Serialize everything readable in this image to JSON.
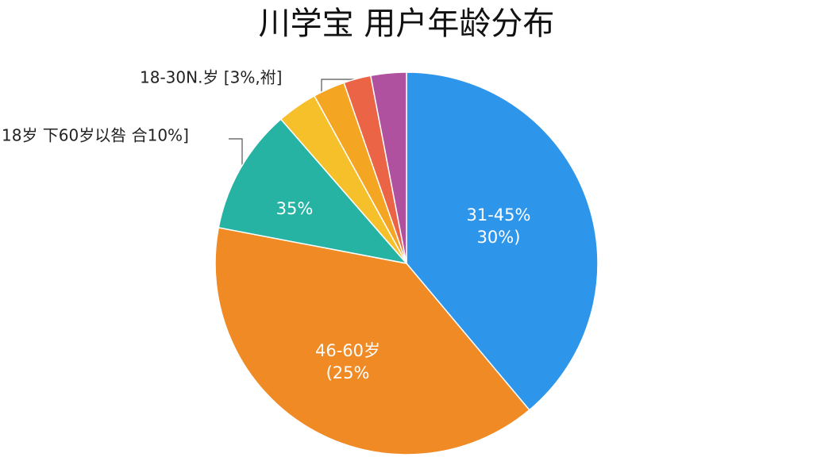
{
  "chart_data": {
    "type": "pie",
    "title": "川学宝  用户年龄分布",
    "values": [
      38.9,
      39.1,
      10.6,
      3.4,
      2.7,
      2.3,
      3.0
    ],
    "colors": [
      "#2e96ea",
      "#f08a24",
      "#26b3a3",
      "#f5c02a",
      "#f4a623",
      "#ec6446",
      "#b0519f"
    ],
    "annotations": [
      {
        "lines": [
          "31-45%",
          "30%)"
        ]
      },
      {
        "lines": [
          "46-60岁",
          "(25%"
        ]
      },
      {
        "lines": [
          "35%"
        ]
      },
      {
        "lines": [
          "18-30N.岁  [3%,祔]"
        ]
      },
      {
        "lines": [
          "18岁  下60岁以咎  合10%]"
        ]
      }
    ]
  }
}
